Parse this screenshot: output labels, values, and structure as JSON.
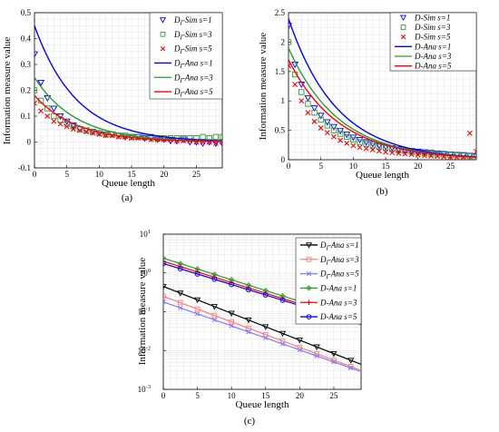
{
  "chart_data": [
    {
      "type": "line",
      "caption": "(a)",
      "xlabel": "Queue length",
      "ylabel": "Information measure value",
      "xlim": [
        0,
        29
      ],
      "ylim": [
        -0.1,
        0.5
      ],
      "xticks": [
        "0",
        "5",
        "10",
        "15",
        "20",
        "25"
      ],
      "yticks": [
        "-0.1",
        "0",
        "0.1",
        "0.2",
        "0.3",
        "0.4",
        "0.5"
      ],
      "legend_position": "top-right",
      "legend": [
        "D_I-Sim s=1",
        "D_I-Sim s=3",
        "D_I-Sim s=5",
        "D_I-Ana s=1",
        "D_I-Ana s=3",
        "D_I-Ana s=5"
      ],
      "series": [
        {
          "name": "D_I-Sim s=1",
          "kind": "marker",
          "marker": "triangle-down",
          "color": "#0000ff",
          "x": [
            0,
            1,
            2,
            3,
            4,
            5,
            6,
            7,
            8,
            9,
            10,
            11,
            12,
            13,
            14,
            15,
            16,
            17,
            18,
            19,
            20,
            21,
            22,
            23,
            24,
            25,
            26,
            27,
            28,
            29
          ],
          "y": [
            0.34,
            0.23,
            0.17,
            0.13,
            0.1,
            0.08,
            0.065,
            0.05,
            0.045,
            0.04,
            0.035,
            0.03,
            0.03,
            0.025,
            0.02,
            0.02,
            0.02,
            0.015,
            0.015,
            0.01,
            0.01,
            0.005,
            0.005,
            0.01,
            0.0,
            0.0,
            -0.005,
            0.0,
            -0.005,
            -0.005
          ]
        },
        {
          "name": "D_I-Sim s=3",
          "kind": "marker",
          "marker": "square",
          "color": "#2e9b2e",
          "x": [
            0,
            1,
            2,
            3,
            4,
            5,
            6,
            7,
            8,
            9,
            10,
            11,
            12,
            13,
            14,
            15,
            16,
            17,
            18,
            19,
            20,
            21,
            22,
            23,
            24,
            25,
            26,
            27,
            28,
            29
          ],
          "y": [
            0.2,
            0.16,
            0.13,
            0.1,
            0.085,
            0.07,
            0.06,
            0.05,
            0.045,
            0.04,
            0.035,
            0.03,
            0.03,
            0.025,
            0.025,
            0.02,
            0.02,
            0.02,
            0.02,
            0.015,
            0.015,
            0.015,
            0.015,
            0.015,
            0.015,
            0.015,
            0.02,
            0.015,
            0.02,
            0.02
          ]
        },
        {
          "name": "D_I-Sim s=5",
          "kind": "marker",
          "marker": "x",
          "color": "#ff0000",
          "x": [
            0,
            1,
            2,
            3,
            4,
            5,
            6,
            7,
            8,
            9,
            10,
            11,
            12,
            13,
            14,
            15,
            16,
            17,
            18,
            19,
            20,
            21,
            22,
            23,
            24,
            25,
            26,
            27,
            28,
            29
          ],
          "y": [
            0.15,
            0.12,
            0.1,
            0.08,
            0.07,
            0.06,
            0.05,
            0.045,
            0.04,
            0.035,
            0.03,
            0.025,
            0.025,
            0.02,
            0.02,
            0.015,
            0.015,
            0.015,
            0.01,
            0.01,
            0.01,
            0.01,
            0.005,
            0.005,
            0.005,
            0.0,
            0.0,
            0.0,
            -0.005,
            0.0
          ]
        },
        {
          "name": "D_I-Ana s=1",
          "kind": "line",
          "color": "#0000ff",
          "y0": 0.45,
          "rate": 0.155
        },
        {
          "name": "D_I-Ana s=3",
          "kind": "line",
          "color": "#2e9b2e",
          "y0": 0.25,
          "rate": 0.155
        },
        {
          "name": "D_I-Ana s=5",
          "kind": "line",
          "color": "#ff0000",
          "y0": 0.18,
          "rate": 0.155
        }
      ]
    },
    {
      "type": "line",
      "caption": "(b)",
      "xlabel": "Queue length",
      "ylabel": "Information measure value",
      "xlim": [
        0,
        29
      ],
      "ylim": [
        0,
        2.5
      ],
      "xticks": [
        "0",
        "5",
        "10",
        "15",
        "20",
        "25"
      ],
      "yticks": [
        "0",
        "0.5",
        "1",
        "1.5",
        "2",
        "2.5"
      ],
      "legend_position": "top-right",
      "legend": [
        "D-Sim s=1",
        "D-Sim s=3",
        "D-Sim s=5",
        "D-Ana s=1",
        "D-Ana s=3",
        "D-Ana s=5"
      ],
      "series": [
        {
          "name": "D-Sim s=1",
          "kind": "marker",
          "marker": "triangle-down",
          "color": "#0000ff",
          "x": [
            0,
            1,
            2,
            3,
            4,
            5,
            6,
            7,
            8,
            9,
            10,
            11,
            12,
            13,
            14,
            15,
            16,
            17,
            18,
            19,
            20,
            21,
            22,
            23,
            24,
            25,
            26,
            27,
            28,
            29
          ],
          "y": [
            2.28,
            1.62,
            1.28,
            1.05,
            0.88,
            0.75,
            0.64,
            0.56,
            0.49,
            0.43,
            0.38,
            0.34,
            0.3,
            0.27,
            0.24,
            0.22,
            0.2,
            0.18,
            0.16,
            0.15,
            0.14,
            0.13,
            0.12,
            0.11,
            0.1,
            0.09,
            0.085,
            0.08,
            0.07,
            0.06
          ]
        },
        {
          "name": "D-Sim s=3",
          "kind": "marker",
          "marker": "square",
          "color": "#2e9b2e",
          "x": [
            0,
            1,
            2,
            3,
            4,
            5,
            6,
            7,
            8,
            9,
            10,
            11,
            12,
            13,
            14,
            15,
            16,
            17,
            18,
            19,
            20,
            21,
            22,
            23,
            24,
            25,
            26,
            27,
            28,
            29
          ],
          "y": [
            2.0,
            1.45,
            1.15,
            0.95,
            0.8,
            0.68,
            0.58,
            0.5,
            0.44,
            0.39,
            0.34,
            0.3,
            0.27,
            0.24,
            0.22,
            0.2,
            0.18,
            0.16,
            0.15,
            0.13,
            0.12,
            0.11,
            0.1,
            0.09,
            0.085,
            0.08,
            0.075,
            0.07,
            0.06,
            0.05
          ]
        },
        {
          "name": "D-Sim s=5",
          "kind": "marker",
          "marker": "x",
          "color": "#ff0000",
          "x": [
            0,
            1,
            2,
            3,
            4,
            5,
            6,
            7,
            8,
            9,
            10,
            11,
            12,
            13,
            14,
            15,
            16,
            17,
            18,
            19,
            20,
            21,
            22,
            23,
            24,
            25,
            26,
            27,
            28,
            29
          ],
          "y": [
            1.6,
            1.28,
            1.0,
            0.8,
            0.65,
            0.54,
            0.46,
            0.39,
            0.33,
            0.28,
            0.24,
            0.21,
            0.19,
            0.17,
            0.15,
            0.13,
            0.12,
            0.11,
            0.1,
            0.09,
            0.08,
            0.07,
            0.065,
            0.06,
            0.05,
            0.045,
            0.04,
            0.04,
            0.45,
            0.14
          ]
        },
        {
          "name": "D-Ana s=1",
          "kind": "line",
          "color": "#0000ff",
          "y0": 2.4,
          "rate": 0.135
        },
        {
          "name": "D-Ana s=3",
          "kind": "line",
          "color": "#2e9b2e",
          "y0": 1.9,
          "rate": 0.13
        },
        {
          "name": "D-Ana s=5",
          "kind": "line",
          "color": "#ff0000",
          "y0": 1.7,
          "rate": 0.128
        }
      ]
    },
    {
      "type": "line",
      "caption": "(c)",
      "xlabel": "Queue length",
      "ylabel": "Information measure value",
      "yscale": "log",
      "xlim": [
        0,
        29
      ],
      "ylim": [
        0.001,
        10
      ],
      "xticks": [
        "0",
        "5",
        "10",
        "15",
        "20",
        "25"
      ],
      "yticks": [
        {
          "base": "10",
          "exp": "-3"
        },
        {
          "base": "10",
          "exp": "-2"
        },
        {
          "base": "10",
          "exp": "-1"
        },
        {
          "base": "10",
          "exp": "0"
        },
        {
          "base": "10",
          "exp": "1"
        }
      ],
      "legend_position": "top-right",
      "legend": [
        "D_I-Ana s=1",
        "D_I-Ana s=3",
        "D_I-Ana s=5",
        "D-Ana s=1",
        "D-Ana s=3",
        "D-Ana s=5"
      ],
      "series": [
        {
          "name": "D_I-Ana s=1",
          "kind": "logline",
          "marker": "triangle-down",
          "color": "#000000",
          "y0": 0.45,
          "slope": -0.0693
        },
        {
          "name": "D_I-Ana s=3",
          "kind": "logline",
          "marker": "square",
          "color": "#ff7f7f",
          "y0": 0.25,
          "slope": -0.0658
        },
        {
          "name": "D_I-Ana s=5",
          "kind": "logline",
          "marker": "x",
          "color": "#7f7fff",
          "y0": 0.18,
          "slope": -0.062
        },
        {
          "name": "D-Ana s=1",
          "kind": "logline",
          "marker": "diamond",
          "color": "#2e9b2e",
          "y0": 2.4,
          "slope": -0.0556
        },
        {
          "name": "D-Ana s=3",
          "kind": "logline",
          "marker": "plus",
          "color": "#ff0000",
          "y0": 2.0,
          "slope": -0.0548
        },
        {
          "name": "D-Ana s=5",
          "kind": "logline",
          "marker": "circle",
          "color": "#0000ff",
          "y0": 1.75,
          "slope": -0.0541
        }
      ]
    }
  ]
}
